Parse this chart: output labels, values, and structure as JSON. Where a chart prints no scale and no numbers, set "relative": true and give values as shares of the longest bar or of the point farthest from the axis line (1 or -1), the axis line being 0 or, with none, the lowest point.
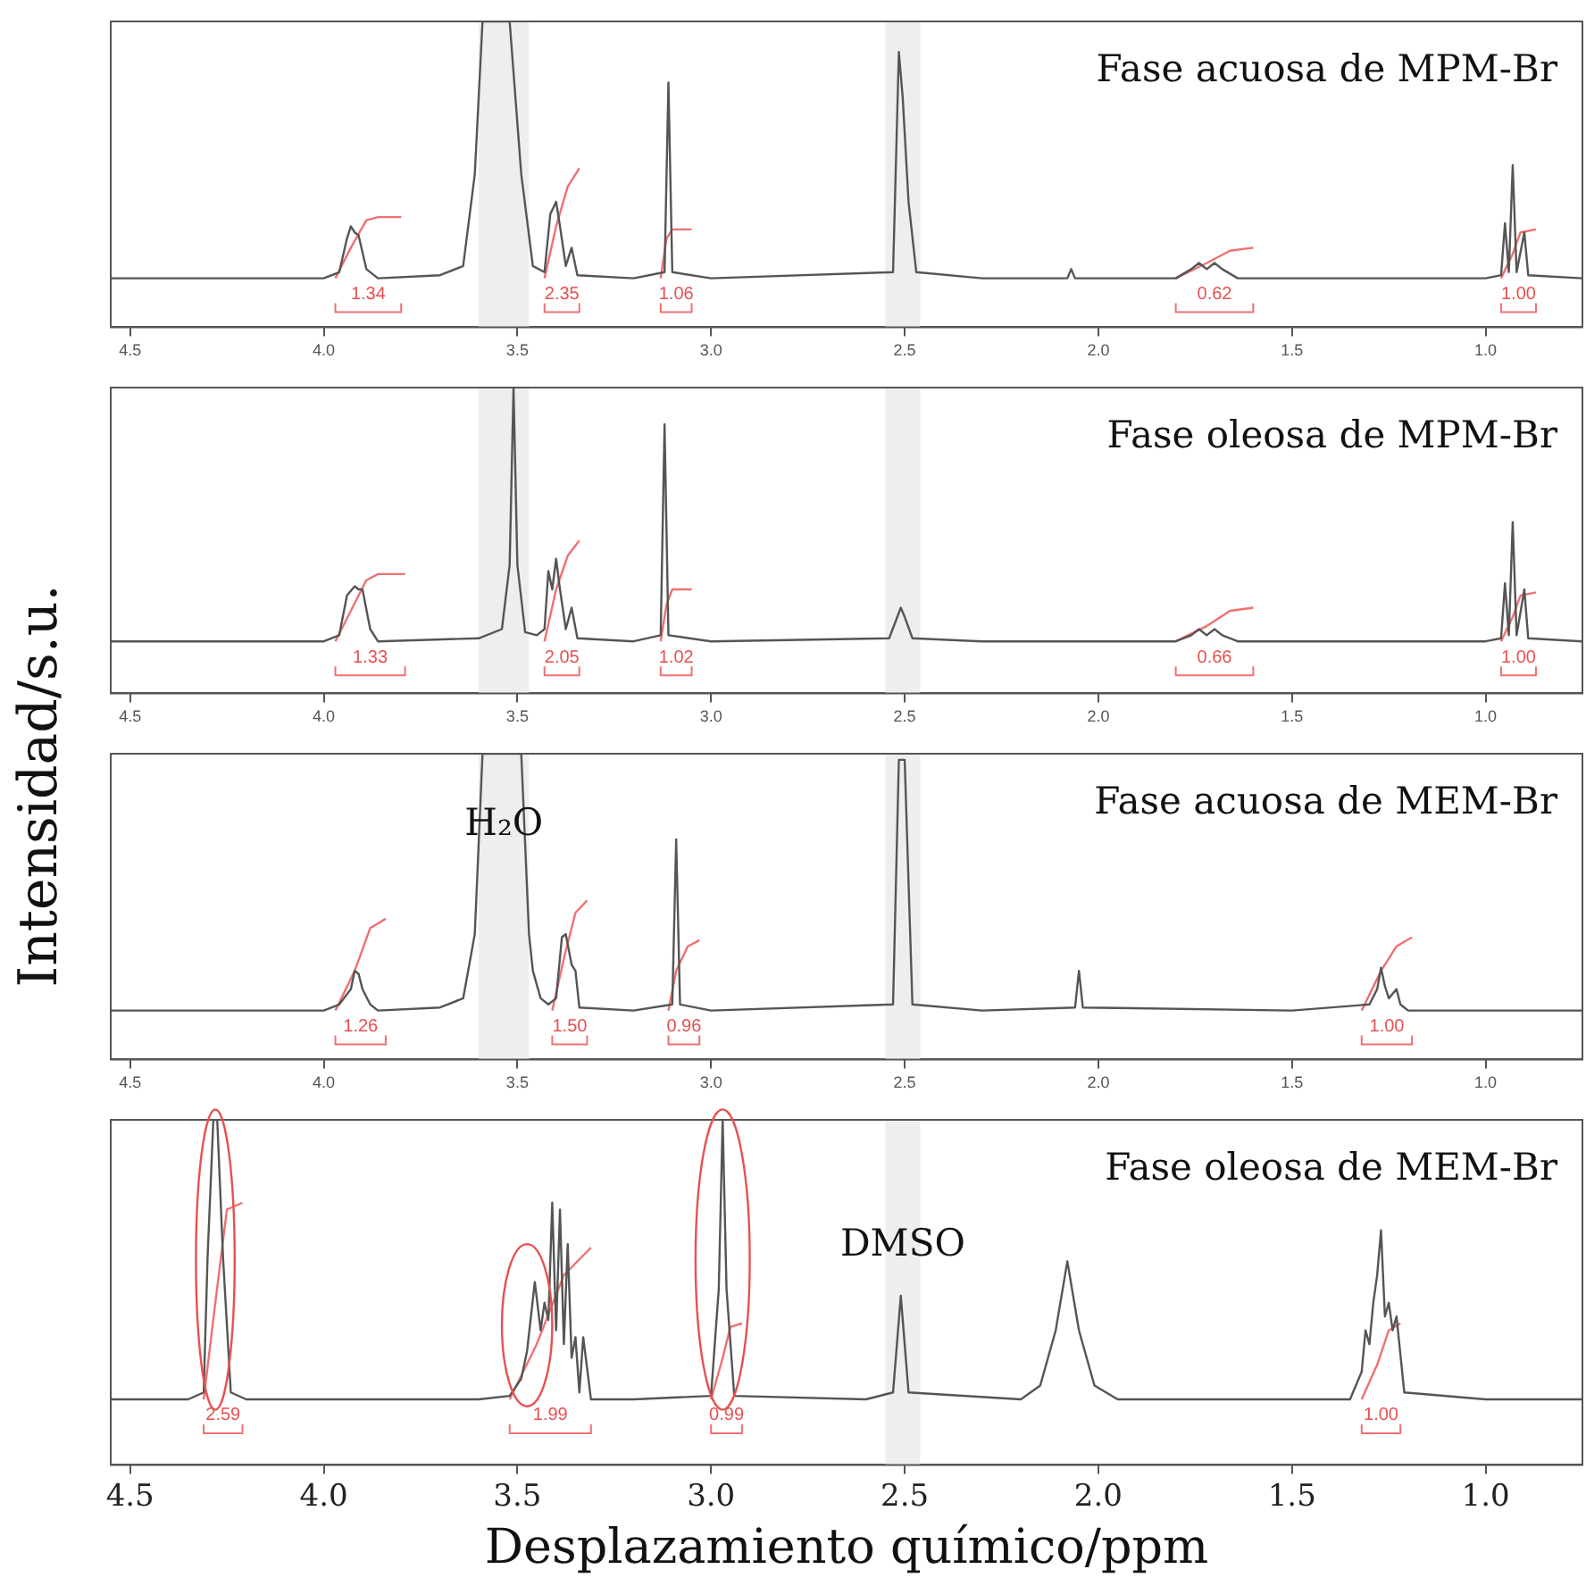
{
  "chart_data": [
    {
      "type": "line",
      "title": "Fase acuosa de MPM-Br",
      "ylabel": "Intensidad/s.u.",
      "relative": true,
      "xlim": [
        4.55,
        0.75
      ],
      "xticks": [
        4.5,
        {
          "value": 4,
          "label": "4.0"
        },
        3.5,
        {
          "value": 3,
          "label": "3.0"
        },
        2.5,
        {
          "value": 2,
          "label": "2.0"
        },
        1.5,
        {
          "value": 1,
          "label": "1.0"
        }
      ],
      "bands": [
        {
          "axis": "x",
          "from": 3.6,
          "to": 3.47,
          "color": "#eeeeee"
        },
        {
          "axis": "x",
          "from": 2.55,
          "to": 2.46,
          "color": "#eeeeee"
        }
      ],
      "series": [
        {
          "color": "#555555",
          "x": [
            4.55,
            4.0,
            3.96,
            3.94,
            3.93,
            3.92,
            3.91,
            3.89,
            3.86,
            3.7,
            3.64,
            3.61,
            3.59,
            3.52,
            3.49,
            3.46,
            3.43,
            3.415,
            3.4,
            3.39,
            3.375,
            3.36,
            3.345,
            3.2,
            3.12,
            3.11,
            3.1,
            3.0,
            2.53,
            2.515,
            2.505,
            2.49,
            2.47,
            2.3,
            2.08,
            2.07,
            2.06,
            1.8,
            1.76,
            1.74,
            1.72,
            1.7,
            1.68,
            1.64,
            1.0,
            0.96,
            0.95,
            0.94,
            0.93,
            0.92,
            0.9,
            0.89,
            0.75
          ],
          "values": [
            0.16,
            0.16,
            0.18,
            0.29,
            0.33,
            0.31,
            0.3,
            0.19,
            0.16,
            0.17,
            0.2,
            0.5,
            1,
            1,
            0.5,
            0.2,
            0.18,
            0.37,
            0.41,
            0.33,
            0.2,
            0.26,
            0.17,
            0.16,
            0.18,
            0.8,
            0.18,
            0.16,
            0.18,
            0.9,
            0.75,
            0.41,
            0.18,
            0.16,
            0.16,
            0.19,
            0.16,
            0.16,
            0.19,
            0.21,
            0.19,
            0.21,
            0.19,
            0.16,
            0.16,
            0.17,
            0.34,
            0.18,
            0.53,
            0.18,
            0.31,
            0.17,
            0.16
          ]
        },
        {
          "color": "#f07070",
          "x": [
            3.97,
            3.93,
            3.89,
            3.86,
            3.8,
            3.79,
            3.43,
            3.4,
            3.37,
            3.34,
            3.33,
            3.13,
            3.115,
            3.1,
            3.05,
            3.04,
            1.8,
            1.72,
            1.66,
            1.6,
            1.59,
            0.96,
            0.93,
            0.91,
            0.87
          ],
          "values": [
            0.16,
            0.26,
            0.35,
            0.36,
            0.36,
            null,
            0.16,
            0.33,
            0.46,
            0.52,
            null,
            0.16,
            0.29,
            0.32,
            0.32,
            null,
            0.16,
            0.21,
            0.25,
            0.26,
            null,
            0.16,
            0.24,
            0.31,
            0.32
          ]
        }
      ],
      "annotations": [
        "1.34",
        "2.35",
        "1.06",
        "0.62",
        "1.00"
      ]
    },
    {
      "type": "line",
      "title": "Fase oleosa de MPM-Br",
      "relative": true,
      "xlim": [
        4.55,
        0.75
      ],
      "xticks": [
        4.5,
        {
          "value": 4,
          "label": "4.0"
        },
        3.5,
        {
          "value": 3,
          "label": "3.0"
        },
        2.5,
        {
          "value": 2,
          "label": "2.0"
        },
        1.5,
        {
          "value": 1,
          "label": "1.0"
        }
      ],
      "bands": [
        {
          "axis": "x",
          "from": 3.6,
          "to": 3.47,
          "color": "#eeeeee"
        },
        {
          "axis": "x",
          "from": 2.55,
          "to": 2.46,
          "color": "#eeeeee"
        }
      ],
      "series": [
        {
          "color": "#555555",
          "x": [
            4.55,
            4.0,
            3.96,
            3.94,
            3.92,
            3.91,
            3.9,
            3.88,
            3.86,
            3.6,
            3.54,
            3.52,
            3.51,
            3.5,
            3.48,
            3.45,
            3.43,
            3.42,
            3.41,
            3.4,
            3.39,
            3.375,
            3.36,
            3.345,
            3.2,
            3.13,
            3.12,
            3.11,
            3.0,
            2.54,
            2.51,
            2.5,
            2.48,
            2.3,
            1.8,
            1.76,
            1.74,
            1.72,
            1.7,
            1.68,
            1.64,
            1.0,
            0.96,
            0.95,
            0.94,
            0.93,
            0.92,
            0.9,
            0.89,
            0.75
          ],
          "values": [
            0.17,
            0.17,
            0.19,
            0.32,
            0.35,
            0.34,
            0.34,
            0.21,
            0.17,
            0.18,
            0.21,
            0.42,
            1,
            0.42,
            0.2,
            0.19,
            0.21,
            0.4,
            0.34,
            0.44,
            0.34,
            0.21,
            0.28,
            0.18,
            0.17,
            0.19,
            0.88,
            0.19,
            0.17,
            0.18,
            0.28,
            0.25,
            0.18,
            0.17,
            0.17,
            0.19,
            0.21,
            0.19,
            0.21,
            0.19,
            0.17,
            0.17,
            0.18,
            0.36,
            0.19,
            0.56,
            0.19,
            0.34,
            0.18,
            0.17
          ]
        },
        {
          "color": "#f07070",
          "x": [
            3.97,
            3.93,
            3.89,
            3.86,
            3.79,
            3.78,
            3.43,
            3.4,
            3.37,
            3.34,
            3.33,
            3.13,
            3.115,
            3.1,
            3.05,
            3.04,
            1.8,
            1.72,
            1.66,
            1.6,
            1.59,
            0.96,
            0.93,
            0.91,
            0.87
          ],
          "values": [
            0.17,
            0.27,
            0.37,
            0.39,
            0.39,
            null,
            0.17,
            0.34,
            0.45,
            0.5,
            null,
            0.17,
            0.29,
            0.34,
            0.34,
            null,
            0.17,
            0.22,
            0.27,
            0.28,
            null,
            0.17,
            0.25,
            0.32,
            0.33
          ]
        }
      ],
      "annotations": [
        "1.33",
        "2.05",
        "1.02",
        "0.66",
        "1.00"
      ]
    },
    {
      "type": "line",
      "title": "Fase acuosa de MEM-Br",
      "relative": true,
      "xlim": [
        4.55,
        0.75
      ],
      "xticks": [
        4.5,
        {
          "value": 4,
          "label": "4.0"
        },
        3.5,
        {
          "value": 3,
          "label": "3.0"
        },
        2.5,
        {
          "value": 2,
          "label": "2.0"
        },
        1.5,
        {
          "value": 1,
          "label": "1.0"
        }
      ],
      "bands": [
        {
          "axis": "x",
          "from": 3.6,
          "to": 3.47,
          "color": "#eeeeee",
          "label": "H₂O"
        },
        {
          "axis": "x",
          "from": 2.55,
          "to": 2.46,
          "color": "#eeeeee"
        }
      ],
      "series": [
        {
          "color": "#555555",
          "x": [
            4.55,
            4.0,
            3.96,
            3.93,
            3.92,
            3.91,
            3.9,
            3.88,
            3.86,
            3.7,
            3.64,
            3.61,
            3.59,
            3.55,
            3.53,
            3.49,
            3.47,
            3.46,
            3.44,
            3.42,
            3.4,
            3.385,
            3.375,
            3.36,
            3.35,
            3.34,
            3.2,
            3.1,
            3.09,
            3.08,
            3.0,
            2.53,
            2.515,
            2.5,
            2.48,
            2.3,
            2.06,
            2.05,
            2.04,
            1.5,
            1.3,
            1.28,
            1.27,
            1.26,
            1.25,
            1.23,
            1.22,
            1.2,
            0.75
          ],
          "values": [
            0.16,
            0.16,
            0.18,
            0.23,
            0.29,
            0.28,
            0.23,
            0.18,
            0.16,
            0.17,
            0.2,
            0.41,
            1,
            1,
            1,
            1,
            0.41,
            0.29,
            0.2,
            0.18,
            0.2,
            0.4,
            0.41,
            0.31,
            0.29,
            0.17,
            0.16,
            0.18,
            0.72,
            0.18,
            0.16,
            0.18,
            0.98,
            0.98,
            0.18,
            0.16,
            0.17,
            0.29,
            0.17,
            0.16,
            0.18,
            0.23,
            0.3,
            0.24,
            0.2,
            0.23,
            0.18,
            0.16,
            0.16
          ]
        },
        {
          "color": "#f07070",
          "x": [
            3.97,
            3.92,
            3.88,
            3.84,
            3.83,
            3.41,
            3.38,
            3.35,
            3.32,
            3.31,
            3.11,
            3.09,
            3.06,
            3.03,
            3.02,
            1.32,
            1.27,
            1.23,
            1.19
          ],
          "values": [
            0.16,
            0.29,
            0.43,
            0.46,
            null,
            0.16,
            0.33,
            0.48,
            0.52,
            null,
            0.16,
            0.29,
            0.37,
            0.39,
            null,
            0.16,
            0.29,
            0.37,
            0.4
          ]
        }
      ],
      "annotations": [
        "1.26",
        "1.50",
        "0.96",
        "1.00"
      ]
    },
    {
      "type": "line",
      "title": "Fase oleosa de MEM-Br",
      "xlabel": "Desplazamiento químico/ppm",
      "relative": true,
      "xlim": [
        4.55,
        0.75
      ],
      "xticks": [
        4.5,
        {
          "value": 4,
          "label": "4.0"
        },
        3.5,
        {
          "value": 3,
          "label": "3.0"
        },
        2.5,
        {
          "value": 2,
          "label": "2.0"
        },
        1.5,
        {
          "value": 1,
          "label": "1.0"
        }
      ],
      "bands": [
        {
          "axis": "x",
          "from": 2.55,
          "to": 2.46,
          "color": "#eeeeee",
          "label": "DMSO"
        }
      ],
      "series": [
        {
          "color": "#555555",
          "x": [
            4.55,
            4.35,
            4.31,
            4.3,
            4.285,
            4.275,
            4.26,
            4.24,
            4.2,
            3.6,
            3.52,
            3.49,
            3.475,
            3.465,
            3.455,
            3.44,
            3.43,
            3.42,
            3.41,
            3.4,
            3.39,
            3.38,
            3.37,
            3.36,
            3.35,
            3.34,
            3.33,
            3.31,
            3.2,
            3.0,
            2.98,
            2.97,
            2.96,
            2.94,
            2.6,
            2.53,
            2.51,
            2.49,
            2.2,
            2.15,
            2.11,
            2.08,
            2.05,
            2.01,
            1.95,
            1.35,
            1.32,
            1.31,
            1.3,
            1.29,
            1.28,
            1.27,
            1.26,
            1.25,
            1.24,
            1.23,
            1.21,
            1.0,
            0.75
          ],
          "values": [
            0.19,
            0.19,
            0.21,
            0.6,
            1,
            1,
            0.6,
            0.21,
            0.19,
            0.19,
            0.2,
            0.25,
            0.33,
            0.43,
            0.53,
            0.39,
            0.47,
            0.42,
            0.76,
            0.39,
            0.74,
            0.35,
            0.64,
            0.31,
            0.37,
            0.21,
            0.37,
            0.19,
            0.19,
            0.2,
            0.51,
            1,
            0.51,
            0.2,
            0.19,
            0.21,
            0.49,
            0.21,
            0.19,
            0.23,
            0.39,
            0.59,
            0.39,
            0.23,
            0.19,
            0.19,
            0.27,
            0.39,
            0.35,
            0.47,
            0.55,
            0.68,
            0.43,
            0.47,
            0.39,
            0.43,
            0.21,
            0.19,
            0.19
          ]
        },
        {
          "color": "#f07070",
          "x": [
            4.31,
            4.28,
            4.25,
            4.21,
            4.2,
            3.52,
            3.45,
            3.38,
            3.31,
            3.3,
            3.0,
            2.97,
            2.95,
            2.92,
            2.91,
            1.32,
            1.28,
            1.25,
            1.22
          ],
          "values": [
            0.19,
            0.47,
            0.74,
            0.76,
            null,
            0.19,
            0.35,
            0.55,
            0.63,
            null,
            0.19,
            0.31,
            0.4,
            0.41,
            null,
            0.19,
            0.29,
            0.39,
            0.41
          ]
        }
      ],
      "annotations": [
        "2.59",
        "1.99",
        "0.99",
        "1.00"
      ]
    }
  ]
}
